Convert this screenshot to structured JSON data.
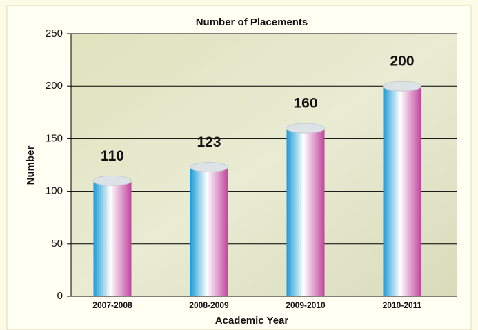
{
  "chart_data": {
    "type": "bar",
    "title": "Number of Placements",
    "x_label": "Academic Year",
    "y_label": "Number",
    "categories": [
      "2007-2008",
      "2008-2009",
      "2009-2010",
      "2010-2011"
    ],
    "values": [
      110,
      123,
      160,
      200
    ],
    "colors": [
      "#1a9ad6",
      "#ffffff",
      "#c2449c"
    ],
    "ylim": [
      0,
      250
    ],
    "yticks": [
      0,
      50,
      100,
      150,
      200,
      250
    ],
    "grid": true
  }
}
